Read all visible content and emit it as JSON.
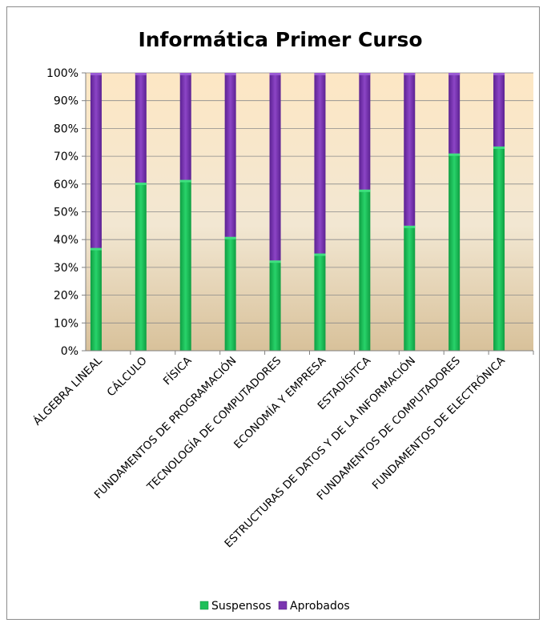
{
  "chart_data": {
    "type": "bar",
    "stacked": true,
    "percent_stacked": true,
    "title": "Informática Primer Curso",
    "xlabel": "",
    "ylabel": "",
    "ylim": [
      0,
      100
    ],
    "y_ticks": [
      "0%",
      "10%",
      "20%",
      "30%",
      "40%",
      "50%",
      "60%",
      "70%",
      "80%",
      "90%",
      "100%"
    ],
    "grid": true,
    "legend_position": "bottom",
    "categories": [
      "ÁLGEBRA LINEAL",
      "CÁLCULO",
      "FÍSICA",
      "FUNDAMENTOS DE PROGRAMACIÓN",
      "TECNOLOGÍA DE COMPUTADORES",
      "ECONOMÍA Y EMPRESA",
      "ESTADÍSITCA",
      "ESTRUCTURAS DE DATOS Y DE LA INFORMACIÓN",
      "FUNDAMENTOS DE COMPUTADORES",
      "FUNDAMENTOS DE ELECTRÓNICA"
    ],
    "series": [
      {
        "name": "Suspensos",
        "color": "#1fbf5a",
        "values": [
          37,
          60.5,
          61.5,
          41,
          32.5,
          35,
          58,
          45,
          71,
          73.5
        ]
      },
      {
        "name": "Aprobados",
        "color": "#7a35b0",
        "values": [
          63,
          39.5,
          38.5,
          59,
          67.5,
          65,
          42,
          55,
          29,
          26.5
        ]
      }
    ]
  }
}
